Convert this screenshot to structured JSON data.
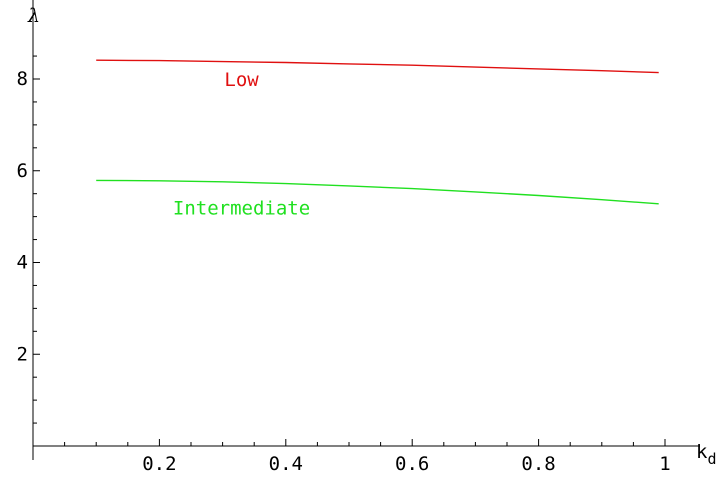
{
  "chart_data": {
    "type": "line",
    "title": "",
    "xlabel": "k",
    "xlabel_sub": "d",
    "ylabel": "λ",
    "xlim": [
      0.0,
      1.0
    ],
    "ylim": [
      0,
      8.6
    ],
    "x_ticks": [
      {
        "value": 0.2,
        "label": "0.2"
      },
      {
        "value": 0.4,
        "label": "0.4"
      },
      {
        "value": 0.6,
        "label": "0.6"
      },
      {
        "value": 0.8,
        "label": "0.8"
      },
      {
        "value": 1.0,
        "label": "1"
      }
    ],
    "y_ticks": [
      {
        "value": 2,
        "label": "2"
      },
      {
        "value": 4,
        "label": "4"
      },
      {
        "value": 6,
        "label": "6"
      },
      {
        "value": 8,
        "label": "8"
      }
    ],
    "grid": false,
    "series": [
      {
        "name": "Low",
        "color": "#e01010",
        "label_at": [
          0.33,
          7.85
        ],
        "x": [
          0.1,
          0.2,
          0.3,
          0.4,
          0.5,
          0.6,
          0.7,
          0.8,
          0.9,
          0.99
        ],
        "values": [
          8.41,
          8.4,
          8.38,
          8.36,
          8.33,
          8.3,
          8.26,
          8.22,
          8.18,
          8.14
        ]
      },
      {
        "name": "Intermediate",
        "color": "#20e020",
        "label_at": [
          0.33,
          5.05
        ],
        "x": [
          0.1,
          0.2,
          0.3,
          0.4,
          0.5,
          0.6,
          0.7,
          0.8,
          0.9,
          0.99
        ],
        "values": [
          5.79,
          5.78,
          5.76,
          5.72,
          5.67,
          5.61,
          5.54,
          5.46,
          5.37,
          5.28
        ]
      }
    ]
  }
}
